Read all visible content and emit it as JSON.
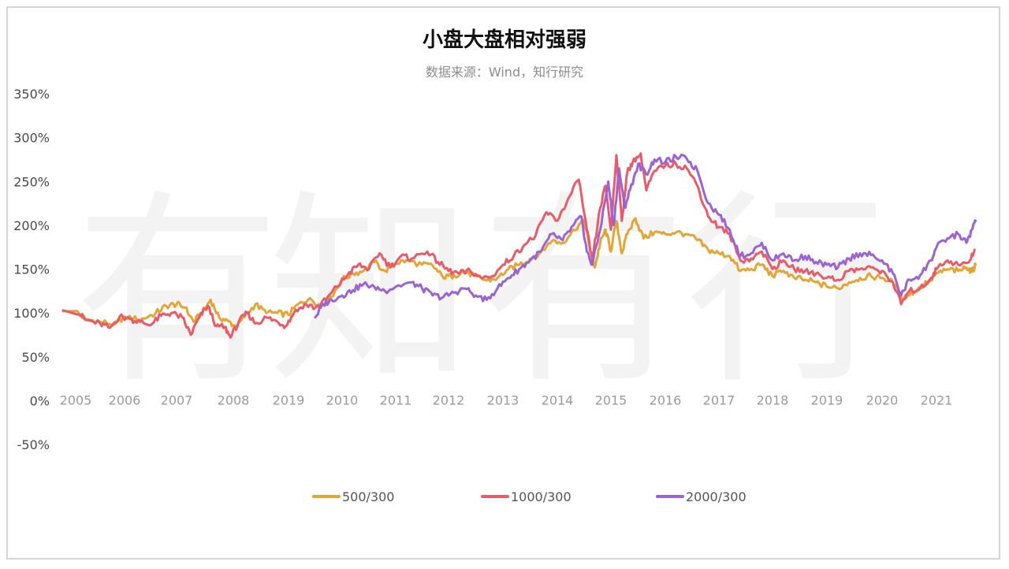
{
  "title": "小盘大盘相对强弱",
  "subtitle": "数据来源：Wind，知行研究",
  "watermark": [
    "有",
    "知",
    "有",
    "行"
  ],
  "chart_data": {
    "type": "line",
    "title": "小盘大盘相对强弱",
    "subtitle": "数据来源：Wind，知行研究",
    "y_ticks": [
      "350%",
      "300%",
      "250%",
      "200%",
      "150%",
      "100%",
      "50%",
      "0%",
      "-50%"
    ],
    "ylim": [
      -50,
      350
    ],
    "x_ticks": [
      "2005",
      "2006",
      "2007",
      "2008",
      "2019",
      "2010",
      "2011",
      "2012",
      "2013",
      "2014",
      "2015",
      "2016",
      "2017",
      "2018",
      "2019",
      "2020",
      "2021"
    ],
    "grid": false,
    "legend_position": "bottom",
    "series": [
      {
        "name": "500/300",
        "color": "#e3a535",
        "points": [
          [
            2005.0,
            102
          ],
          [
            2005.2,
            93
          ],
          [
            2005.5,
            90
          ],
          [
            2005.8,
            87
          ],
          [
            2006.0,
            96
          ],
          [
            2006.3,
            92
          ],
          [
            2006.6,
            100
          ],
          [
            2006.8,
            108
          ],
          [
            2007.0,
            110
          ],
          [
            2007.15,
            106
          ],
          [
            2007.3,
            90
          ],
          [
            2007.45,
            100
          ],
          [
            2007.6,
            115
          ],
          [
            2007.75,
            95
          ],
          [
            2007.9,
            91
          ],
          [
            2008.05,
            84
          ],
          [
            2008.2,
            95
          ],
          [
            2008.4,
            110
          ],
          [
            2008.6,
            100
          ],
          [
            2008.8,
            100
          ],
          [
            2009.0,
            98
          ],
          [
            2009.2,
            111
          ],
          [
            2009.4,
            117
          ],
          [
            2009.6,
            108
          ],
          [
            2009.8,
            118
          ],
          [
            2010.0,
            138
          ],
          [
            2010.2,
            145
          ],
          [
            2010.4,
            148
          ],
          [
            2010.6,
            158
          ],
          [
            2010.8,
            148
          ],
          [
            2011.0,
            157
          ],
          [
            2011.2,
            160
          ],
          [
            2011.5,
            155
          ],
          [
            2011.7,
            154
          ],
          [
            2011.9,
            140
          ],
          [
            2012.1,
            143
          ],
          [
            2012.3,
            147
          ],
          [
            2012.5,
            142
          ],
          [
            2012.7,
            137
          ],
          [
            2012.9,
            140
          ],
          [
            2013.1,
            150
          ],
          [
            2013.3,
            155
          ],
          [
            2013.5,
            162
          ],
          [
            2013.7,
            170
          ],
          [
            2013.9,
            182
          ],
          [
            2014.1,
            180
          ],
          [
            2014.3,
            195
          ],
          [
            2014.5,
            205
          ],
          [
            2014.6,
            175
          ],
          [
            2014.7,
            152
          ],
          [
            2014.8,
            180
          ],
          [
            2014.9,
            195
          ],
          [
            2015.0,
            170
          ],
          [
            2015.1,
            205
          ],
          [
            2015.2,
            168
          ],
          [
            2015.3,
            190
          ],
          [
            2015.45,
            208
          ],
          [
            2015.6,
            185
          ],
          [
            2015.8,
            192
          ],
          [
            2016.0,
            190
          ],
          [
            2016.2,
            192
          ],
          [
            2016.4,
            190
          ],
          [
            2016.6,
            183
          ],
          [
            2016.8,
            172
          ],
          [
            2017.0,
            168
          ],
          [
            2017.2,
            165
          ],
          [
            2017.4,
            148
          ],
          [
            2017.6,
            150
          ],
          [
            2017.8,
            155
          ],
          [
            2018.0,
            142
          ],
          [
            2018.2,
            148
          ],
          [
            2018.4,
            140
          ],
          [
            2018.6,
            138
          ],
          [
            2018.8,
            135
          ],
          [
            2019.0,
            130
          ],
          [
            2019.2,
            128
          ],
          [
            2019.4,
            135
          ],
          [
            2019.6,
            140
          ],
          [
            2019.8,
            142
          ],
          [
            2020.0,
            140
          ],
          [
            2020.2,
            135
          ],
          [
            2020.35,
            118
          ],
          [
            2020.5,
            120
          ],
          [
            2020.7,
            130
          ],
          [
            2020.9,
            138
          ],
          [
            2021.0,
            145
          ],
          [
            2021.2,
            150
          ],
          [
            2021.4,
            148
          ],
          [
            2021.55,
            152
          ],
          [
            2021.65,
            147
          ],
          [
            2021.72,
            155
          ]
        ]
      },
      {
        "name": "1000/300",
        "color": "#ea5b6a",
        "points": [
          [
            2005.0,
            103
          ],
          [
            2005.2,
            92
          ],
          [
            2005.5,
            88
          ],
          [
            2005.7,
            83
          ],
          [
            2005.9,
            96
          ],
          [
            2006.1,
            93
          ],
          [
            2006.3,
            90
          ],
          [
            2006.5,
            86
          ],
          [
            2006.7,
            97
          ],
          [
            2006.9,
            100
          ],
          [
            2007.1,
            95
          ],
          [
            2007.25,
            75
          ],
          [
            2007.4,
            95
          ],
          [
            2007.55,
            108
          ],
          [
            2007.7,
            85
          ],
          [
            2007.85,
            84
          ],
          [
            2007.95,
            72
          ],
          [
            2008.1,
            90
          ],
          [
            2008.25,
            100
          ],
          [
            2008.4,
            88
          ],
          [
            2008.6,
            95
          ],
          [
            2008.8,
            90
          ],
          [
            2008.95,
            85
          ],
          [
            2009.1,
            100
          ],
          [
            2009.3,
            110
          ],
          [
            2009.5,
            106
          ],
          [
            2009.7,
            115
          ],
          [
            2009.9,
            130
          ],
          [
            2010.1,
            143
          ],
          [
            2010.3,
            155
          ],
          [
            2010.5,
            150
          ],
          [
            2010.7,
            168
          ],
          [
            2010.9,
            152
          ],
          [
            2011.1,
            165
          ],
          [
            2011.3,
            162
          ],
          [
            2011.6,
            170
          ],
          [
            2011.8,
            158
          ],
          [
            2012.0,
            148
          ],
          [
            2012.2,
            145
          ],
          [
            2012.4,
            148
          ],
          [
            2012.6,
            140
          ],
          [
            2012.8,
            142
          ],
          [
            2013.0,
            155
          ],
          [
            2013.2,
            165
          ],
          [
            2013.4,
            178
          ],
          [
            2013.6,
            188
          ],
          [
            2013.8,
            215
          ],
          [
            2014.0,
            205
          ],
          [
            2014.2,
            230
          ],
          [
            2014.4,
            252
          ],
          [
            2014.55,
            195
          ],
          [
            2014.65,
            160
          ],
          [
            2014.8,
            220
          ],
          [
            2014.9,
            245
          ],
          [
            2015.0,
            195
          ],
          [
            2015.1,
            280
          ],
          [
            2015.2,
            205
          ],
          [
            2015.3,
            260
          ],
          [
            2015.4,
            272
          ],
          [
            2015.55,
            282
          ],
          [
            2015.65,
            240
          ],
          [
            2015.8,
            262
          ],
          [
            2016.0,
            268
          ],
          [
            2016.2,
            270
          ],
          [
            2016.4,
            265
          ],
          [
            2016.6,
            245
          ],
          [
            2016.8,
            210
          ],
          [
            2017.0,
            198
          ],
          [
            2017.2,
            190
          ],
          [
            2017.4,
            160
          ],
          [
            2017.6,
            162
          ],
          [
            2017.8,
            170
          ],
          [
            2018.0,
            150
          ],
          [
            2018.2,
            160
          ],
          [
            2018.4,
            150
          ],
          [
            2018.6,
            148
          ],
          [
            2018.8,
            145
          ],
          [
            2019.0,
            140
          ],
          [
            2019.2,
            138
          ],
          [
            2019.4,
            148
          ],
          [
            2019.6,
            150
          ],
          [
            2019.8,
            152
          ],
          [
            2020.0,
            148
          ],
          [
            2020.2,
            135
          ],
          [
            2020.35,
            110
          ],
          [
            2020.5,
            125
          ],
          [
            2020.7,
            128
          ],
          [
            2020.9,
            140
          ],
          [
            2021.0,
            150
          ],
          [
            2021.2,
            160
          ],
          [
            2021.4,
            155
          ],
          [
            2021.6,
            158
          ],
          [
            2021.7,
            172
          ]
        ]
      },
      {
        "name": "2000/300",
        "color": "#9b63d3",
        "points": [
          [
            2009.5,
            95
          ],
          [
            2009.65,
            110
          ],
          [
            2009.8,
            115
          ],
          [
            2010.0,
            120
          ],
          [
            2010.2,
            126
          ],
          [
            2010.4,
            133
          ],
          [
            2010.6,
            130
          ],
          [
            2010.8,
            125
          ],
          [
            2011.0,
            130
          ],
          [
            2011.3,
            135
          ],
          [
            2011.5,
            128
          ],
          [
            2011.7,
            120
          ],
          [
            2011.9,
            118
          ],
          [
            2012.1,
            123
          ],
          [
            2012.3,
            128
          ],
          [
            2012.5,
            120
          ],
          [
            2012.7,
            115
          ],
          [
            2012.9,
            128
          ],
          [
            2013.1,
            140
          ],
          [
            2013.3,
            150
          ],
          [
            2013.5,
            160
          ],
          [
            2013.7,
            170
          ],
          [
            2013.9,
            190
          ],
          [
            2014.1,
            183
          ],
          [
            2014.3,
            200
          ],
          [
            2014.45,
            210
          ],
          [
            2014.55,
            170
          ],
          [
            2014.65,
            155
          ],
          [
            2014.8,
            195
          ],
          [
            2014.95,
            250
          ],
          [
            2015.05,
            200
          ],
          [
            2015.15,
            265
          ],
          [
            2015.25,
            220
          ],
          [
            2015.35,
            240
          ],
          [
            2015.5,
            270
          ],
          [
            2015.65,
            258
          ],
          [
            2015.8,
            275
          ],
          [
            2016.0,
            272
          ],
          [
            2016.2,
            278
          ],
          [
            2016.4,
            276
          ],
          [
            2016.6,
            262
          ],
          [
            2016.8,
            225
          ],
          [
            2017.0,
            212
          ],
          [
            2017.2,
            195
          ],
          [
            2017.4,
            165
          ],
          [
            2017.6,
            168
          ],
          [
            2017.8,
            180
          ],
          [
            2018.0,
            160
          ],
          [
            2018.2,
            168
          ],
          [
            2018.4,
            160
          ],
          [
            2018.6,
            165
          ],
          [
            2018.8,
            158
          ],
          [
            2019.0,
            155
          ],
          [
            2019.2,
            152
          ],
          [
            2019.4,
            162
          ],
          [
            2019.6,
            168
          ],
          [
            2019.8,
            166
          ],
          [
            2020.0,
            160
          ],
          [
            2020.2,
            145
          ],
          [
            2020.35,
            120
          ],
          [
            2020.5,
            138
          ],
          [
            2020.7,
            143
          ],
          [
            2020.9,
            160
          ],
          [
            2021.0,
            175
          ],
          [
            2021.2,
            185
          ],
          [
            2021.4,
            190
          ],
          [
            2021.55,
            180
          ],
          [
            2021.65,
            195
          ],
          [
            2021.72,
            205
          ]
        ]
      }
    ]
  }
}
